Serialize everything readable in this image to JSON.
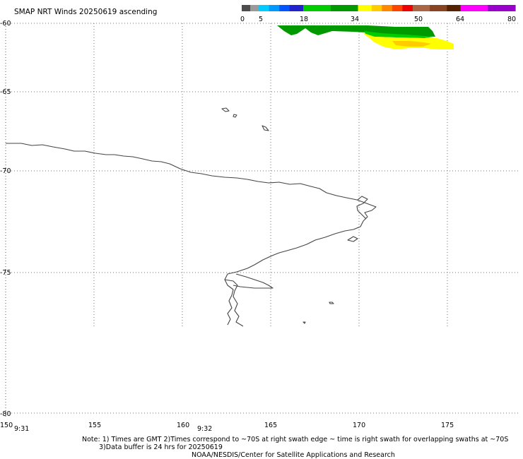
{
  "title": "SMAP NRT Winds 20250619 ascending",
  "colorbar": {
    "labels": [
      "0",
      "5",
      "18",
      "34",
      "50",
      "64",
      "80"
    ],
    "segments": [
      {
        "from": 0,
        "to": 2.5,
        "color": "#4d4d4d"
      },
      {
        "from": 2.5,
        "to": 5,
        "color": "#9a9a9a"
      },
      {
        "from": 5,
        "to": 8,
        "color": "#00ccff"
      },
      {
        "from": 8,
        "to": 11,
        "color": "#0099ff"
      },
      {
        "from": 11,
        "to": 14,
        "color": "#0055ff"
      },
      {
        "from": 14,
        "to": 18,
        "color": "#2222cc"
      },
      {
        "from": 18,
        "to": 26,
        "color": "#00cc00"
      },
      {
        "from": 26,
        "to": 34,
        "color": "#009900"
      },
      {
        "from": 34,
        "to": 38,
        "color": "#ffff00"
      },
      {
        "from": 38,
        "to": 41,
        "color": "#ffcc00"
      },
      {
        "from": 41,
        "to": 44,
        "color": "#ff8800"
      },
      {
        "from": 44,
        "to": 47,
        "color": "#ff4400"
      },
      {
        "from": 47,
        "to": 50,
        "color": "#ee0000"
      },
      {
        "from": 50,
        "to": 55,
        "color": "#aa6644"
      },
      {
        "from": 55,
        "to": 60,
        "color": "#884422"
      },
      {
        "from": 60,
        "to": 64,
        "color": "#552200"
      },
      {
        "from": 64,
        "to": 72,
        "color": "#ff00ff"
      },
      {
        "from": 72,
        "to": 80,
        "color": "#9900cc"
      }
    ]
  },
  "lat_labels": [
    "-60",
    "-65",
    "-70",
    "-75",
    "-80"
  ],
  "lon_labels": [
    "150",
    "155",
    "160",
    "165",
    "170",
    "175"
  ],
  "time_labels": [
    "9:31",
    "9:32"
  ],
  "notes": {
    "line1": "Note: 1) Times are GMT 2)Times correspond to ~70S at right swath edge ~ time is right swath for overlapping swaths at ~70S",
    "line2": "3)Data buffer is 24 hrs for 20250619",
    "line3": "NOAA/NESDIS/Center for Satellite Applications and Research"
  },
  "wind_colors": {
    "green_dark": "#009900",
    "green": "#00cc00",
    "yellow": "#ffff00",
    "gold": "#ffcc00"
  },
  "coast_color": "#444444"
}
